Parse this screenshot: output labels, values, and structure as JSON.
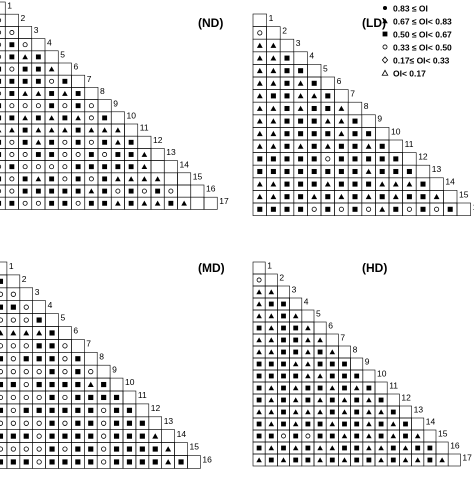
{
  "panels": [
    {
      "label": "(ND)",
      "steps": 17,
      "rows": [
        "",
        "o",
        "oo",
        "o#o",
        "o#t#",
        "#o##t",
        "####o#",
        "o#tt#t#",
        "#ooo#o#o",
        "##t#t#to#",
        "tt#ttt#ttt",
        "#o#t#o#o#t#",
        "#oo##oo#o##t",
        "o#oooo#####t",
        "#o#t#o#o#tttt",
        "oo#####t#o#o#o",
        "##oo##o##t#tt#t"
      ]
    },
    {
      "label": "(LD)",
      "steps": 16,
      "rows": [
        "",
        "o",
        "tt",
        "tt#",
        "tt##",
        "tt#t#",
        "t##tt#",
        "tt#t##t",
        "tt###tt#",
        "tt####t##",
        "tt#t#t##t#",
        "#####o#####",
        "########t###",
        "tt###t###ttt#",
        "tt##t#t#t#t##t",
        "####o#o#ot#o#o#"
      ]
    },
    {
      "label": "(MD)",
      "steps": 16,
      "rows": [
        "",
        "#",
        "oo",
        "##o",
        "ooo#",
        "tttt#",
        "ooo##o",
        "#o###o#",
        "oooo#o#o",
        "##o####t#",
        "oooo#o####",
        "#o######o##",
        "oooo#o##o###",
        "###o####o###t",
        "oooo#o##o####t",
        "###o####o####t#"
      ]
    },
    {
      "label": "(HD)",
      "steps": 17,
      "rows": [
        "",
        "o",
        "tt",
        "t##",
        "tt#t",
        "#t##t",
        "tt##tt",
        "tt##t#t",
        "###tt###",
        "####tt###",
        "#t#t##t#t#",
        "#t#t#t#t#t#",
        "tt#ttt#t#tt#",
        "#t#t##t##t#t#",
        "##o#o##t#t#t#t",
        "#t#t#tt##tt#t##",
        "t#t##t#t##t#tt#t"
      ]
    }
  ],
  "legend": {
    "items": [
      {
        "symbol": "dot",
        "label": "0.83 ≤ OI"
      },
      {
        "symbol": "triangle-filled",
        "label": "0.67 ≤ OI< 0.83"
      },
      {
        "symbol": "square-filled",
        "label": "0.50 ≤ OI< 0.67"
      },
      {
        "symbol": "circle-open",
        "label": "0.33 ≤ OI< 0.50"
      },
      {
        "symbol": "diamond-open",
        "label": "0.17≤ OI< 0.33"
      },
      {
        "symbol": "triangle-open",
        "label": "OI< 0.17"
      }
    ]
  }
}
